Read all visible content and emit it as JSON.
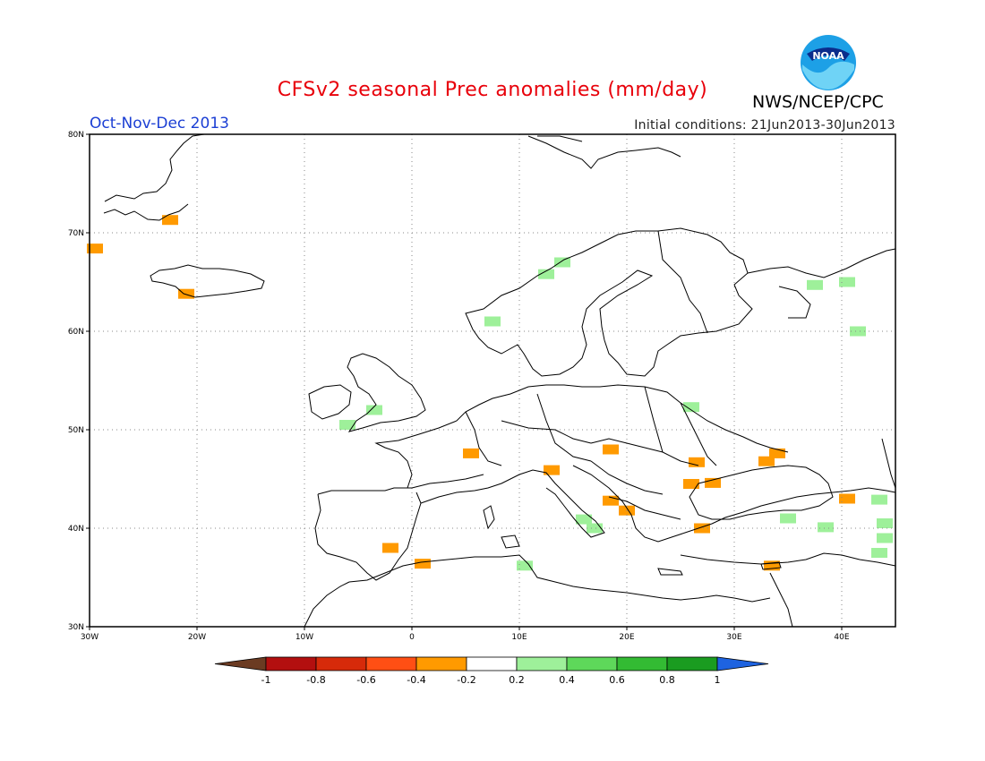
{
  "title": "CFSv2 seasonal Prec anomalies (mm/day)",
  "period": "Oct-Nov-Dec 2013",
  "initial_conditions": "Initial conditions: 21Jun2013-30Jun2013",
  "organization": "NWS/NCEP/CPC",
  "logo_text": "NOAA",
  "map": {
    "lon_range": [
      -30,
      45
    ],
    "lat_range": [
      30,
      80
    ],
    "x_ticks": [
      "30W",
      "20W",
      "10W",
      "0",
      "10E",
      "20E",
      "30E",
      "40E"
    ],
    "y_ticks": [
      "30N",
      "40N",
      "50N",
      "60N",
      "70N",
      "80N"
    ],
    "grid": "dotted"
  },
  "colorbar": {
    "labels": [
      "-1",
      "-0.8",
      "-0.6",
      "-0.4",
      "-0.2",
      "0.2",
      "0.4",
      "0.6",
      "0.8",
      "1"
    ],
    "colors": [
      "#6b3b22",
      "#b30f0f",
      "#d62a0a",
      "#ff4f14",
      "#ff9a00",
      "#ffffff",
      "#9ef09a",
      "#5ed85a",
      "#33bb33",
      "#1a9c20",
      "#1e63e0"
    ]
  },
  "anomaly_cells": [
    {
      "lon": -29.5,
      "lat": 68.4,
      "cat": "dry"
    },
    {
      "lon": -22.5,
      "lat": 71.3,
      "cat": "dry"
    },
    {
      "lon": -21,
      "lat": 63.8,
      "cat": "dry"
    },
    {
      "lon": 12.5,
      "lat": 65.8,
      "cat": "wet"
    },
    {
      "lon": 14,
      "lat": 67.0,
      "cat": "wet"
    },
    {
      "lon": 7.5,
      "lat": 61.0,
      "cat": "wet"
    },
    {
      "lon": 37.5,
      "lat": 64.7,
      "cat": "wet"
    },
    {
      "lon": 40.5,
      "lat": 65.0,
      "cat": "wet"
    },
    {
      "lon": 41.5,
      "lat": 60.0,
      "cat": "wet"
    },
    {
      "lon": -3.5,
      "lat": 52.0,
      "cat": "wet"
    },
    {
      "lon": -6,
      "lat": 50.5,
      "cat": "wet"
    },
    {
      "lon": 26,
      "lat": 52.3,
      "cat": "wet"
    },
    {
      "lon": 5.5,
      "lat": 47.6,
      "cat": "dry"
    },
    {
      "lon": 18.5,
      "lat": 48.0,
      "cat": "dry"
    },
    {
      "lon": 13,
      "lat": 45.9,
      "cat": "dry"
    },
    {
      "lon": 26.5,
      "lat": 46.7,
      "cat": "dry"
    },
    {
      "lon": 26,
      "lat": 44.5,
      "cat": "dry"
    },
    {
      "lon": 28,
      "lat": 44.6,
      "cat": "dry"
    },
    {
      "lon": 33,
      "lat": 46.8,
      "cat": "dry"
    },
    {
      "lon": 34,
      "lat": 47.6,
      "cat": "dry"
    },
    {
      "lon": 18.5,
      "lat": 42.8,
      "cat": "dry"
    },
    {
      "lon": 20,
      "lat": 41.8,
      "cat": "dry"
    },
    {
      "lon": 27,
      "lat": 40.0,
      "cat": "dry"
    },
    {
      "lon": 40.5,
      "lat": 43.0,
      "cat": "dry"
    },
    {
      "lon": 33.5,
      "lat": 36.2,
      "cat": "dry"
    },
    {
      "lon": 16,
      "lat": 40.9,
      "cat": "wet"
    },
    {
      "lon": 17,
      "lat": 40.0,
      "cat": "wet"
    },
    {
      "lon": 35,
      "lat": 41.0,
      "cat": "wet"
    },
    {
      "lon": 38.5,
      "lat": 40.1,
      "cat": "wet"
    },
    {
      "lon": 43.5,
      "lat": 42.9,
      "cat": "wet"
    },
    {
      "lon": 44,
      "lat": 40.5,
      "cat": "wet"
    },
    {
      "lon": 44,
      "lat": 39.0,
      "cat": "wet"
    },
    {
      "lon": 43.5,
      "lat": 37.5,
      "cat": "wet"
    },
    {
      "lon": 10.5,
      "lat": 36.2,
      "cat": "wet"
    },
    {
      "lon": -2,
      "lat": 38.0,
      "cat": "dry"
    },
    {
      "lon": 1,
      "lat": 36.4,
      "cat": "dry"
    }
  ]
}
